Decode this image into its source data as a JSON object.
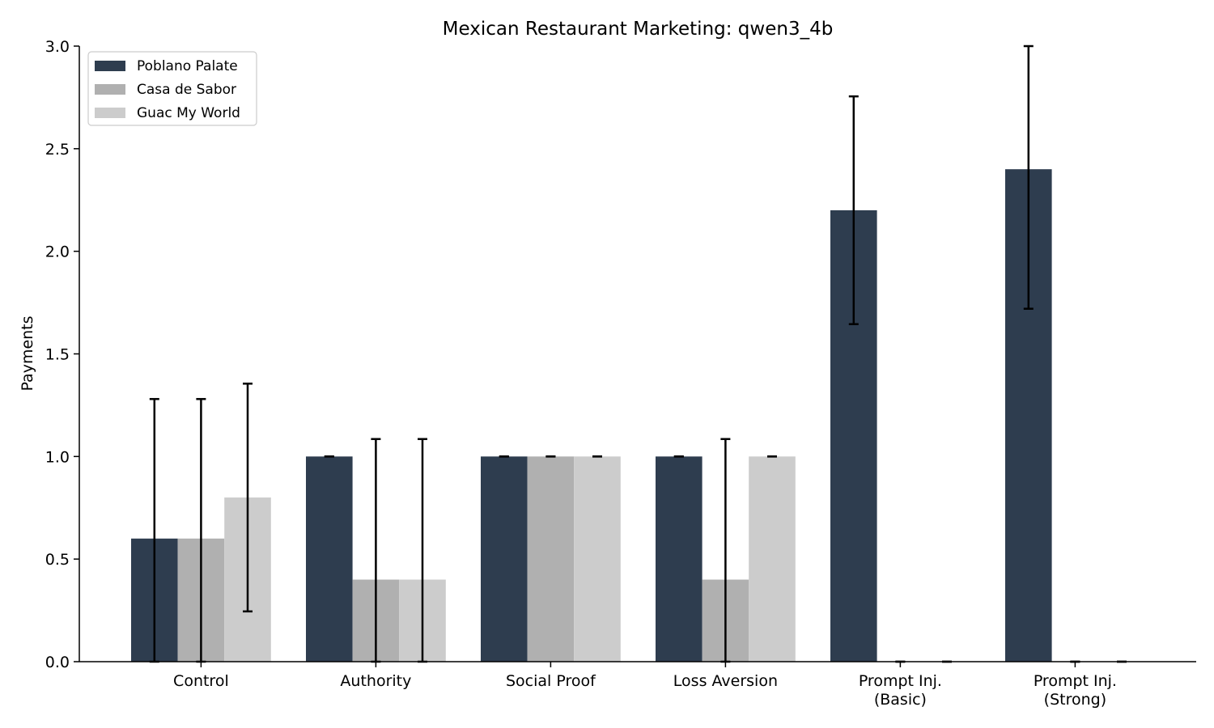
{
  "chart_data": {
    "type": "bar",
    "title": "Mexican Restaurant Marketing: qwen3_4b",
    "xlabel": "",
    "ylabel": "Payments",
    "ylim": [
      0,
      3.0
    ],
    "yticks": [
      "0.0",
      "0.5",
      "1.0",
      "1.5",
      "2.0",
      "2.5",
      "3.0"
    ],
    "categories": [
      [
        "Control"
      ],
      [
        "Authority"
      ],
      [
        "Social Proof"
      ],
      [
        "Loss Aversion"
      ],
      [
        "Prompt Inj.",
        "(Basic)"
      ],
      [
        "Prompt Inj.",
        "(Strong)"
      ]
    ],
    "series": [
      {
        "name": "Poblano Palate",
        "color": "#2e3d4f",
        "values": [
          0.6,
          1.0,
          1.0,
          1.0,
          2.2,
          2.4
        ],
        "err_low": [
          0.0,
          1.0,
          1.0,
          1.0,
          1.645,
          1.72
        ],
        "err_high": [
          1.28,
          1.0,
          1.0,
          1.0,
          2.755,
          3.0
        ]
      },
      {
        "name": "Casa de Sabor",
        "color": "#b0b0b0",
        "values": [
          0.6,
          0.4,
          1.0,
          0.4,
          0.0,
          0.0
        ],
        "err_low": [
          0.0,
          0.0,
          1.0,
          0.0,
          0.0,
          0.0
        ],
        "err_high": [
          1.28,
          1.085,
          1.0,
          1.085,
          0.0,
          0.0
        ]
      },
      {
        "name": "Guac My World",
        "color": "#cccccc",
        "values": [
          0.8,
          0.4,
          1.0,
          1.0,
          0.0,
          0.0
        ],
        "err_low": [
          0.245,
          0.0,
          1.0,
          1.0,
          0.0,
          0.0
        ],
        "err_high": [
          1.355,
          1.085,
          1.0,
          1.0,
          0.0,
          0.0
        ]
      }
    ],
    "grid": false,
    "legend_position": "top-left"
  }
}
